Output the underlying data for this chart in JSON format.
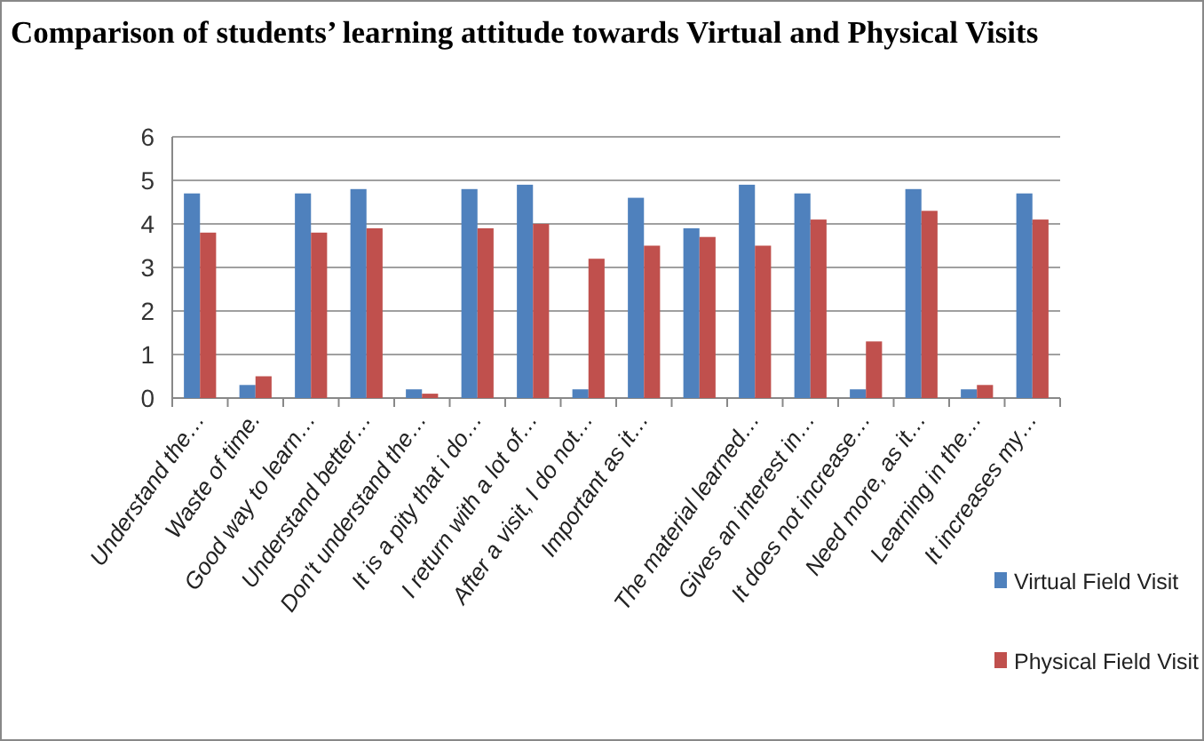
{
  "chart_data": {
    "type": "bar",
    "title": "Comparison of students’ learning attitude towards Virtual and Physical Visits",
    "categories": [
      "Understand the…",
      "Waste of time.",
      "Good way to learn…",
      "Understand better…",
      "Don't understand the…",
      "It is a pity that i do…",
      "I return with a lot of…",
      "After a visit, I do not…",
      "Important as it…",
      null,
      "The material learned…",
      "Gives an interest in…",
      "It does not increase…",
      "Need more,  as it…",
      "Learning in the…",
      "It increases my…"
    ],
    "series": [
      {
        "name": "Virtual Field Visit",
        "color": "#4f81bd",
        "values": [
          4.7,
          0.3,
          4.7,
          4.8,
          0.2,
          4.8,
          4.9,
          0.2,
          4.6,
          3.9,
          4.9,
          4.7,
          0.2,
          4.8,
          0.2,
          4.7
        ]
      },
      {
        "name": "Physical Field Visit",
        "color": "#c0504d",
        "values": [
          3.8,
          0.5,
          3.8,
          3.9,
          0.1,
          3.9,
          4.0,
          3.2,
          3.5,
          3.7,
          3.5,
          4.1,
          1.3,
          4.3,
          0.3,
          4.1
        ]
      }
    ],
    "ylim": [
      0,
      6
    ],
    "yticks": [
      0,
      1,
      2,
      3,
      4,
      5,
      6
    ],
    "grid": "y",
    "legend": "right"
  }
}
